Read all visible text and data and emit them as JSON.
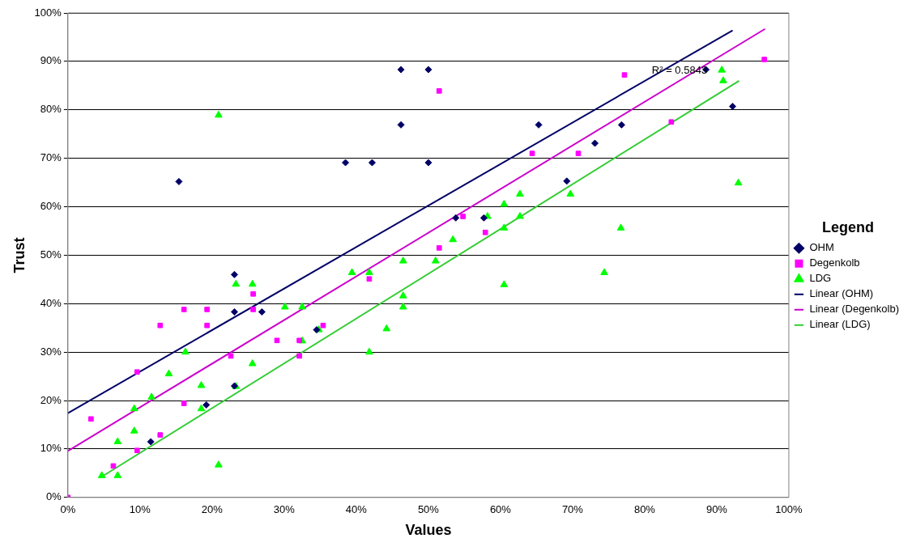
{
  "chart_data": {
    "type": "scatter",
    "xlabel": "Values",
    "ylabel": "Trust",
    "legend_title": "Legend",
    "legend": "right",
    "grid": "y",
    "xlim": [
      0,
      100
    ],
    "ylim": [
      0,
      100
    ],
    "xticks": [
      {
        "value": 0,
        "label": "0%"
      },
      {
        "value": 10,
        "label": "10%"
      },
      {
        "value": 20,
        "label": "20%"
      },
      {
        "value": 30,
        "label": "30%"
      },
      {
        "value": 40,
        "label": "40%"
      },
      {
        "value": 50,
        "label": "50%"
      },
      {
        "value": 60,
        "label": "60%"
      },
      {
        "value": 70,
        "label": "70%"
      },
      {
        "value": 80,
        "label": "80%"
      },
      {
        "value": 90,
        "label": "90%"
      },
      {
        "value": 100,
        "label": "100%"
      }
    ],
    "yticks": [
      {
        "value": 0,
        "label": "0%"
      },
      {
        "value": 10,
        "label": "10%"
      },
      {
        "value": 20,
        "label": "20%"
      },
      {
        "value": 30,
        "label": "30%"
      },
      {
        "value": 40,
        "label": "40%"
      },
      {
        "value": 50,
        "label": "50%"
      },
      {
        "value": 60,
        "label": "60%"
      },
      {
        "value": 70,
        "label": "70%"
      },
      {
        "value": 80,
        "label": "80%"
      },
      {
        "value": 90,
        "label": "90%"
      },
      {
        "value": 100,
        "label": "100%"
      }
    ],
    "annotations": [
      "R² = 0.5843"
    ],
    "series": [
      {
        "name": "OHM",
        "type": "scatter",
        "marker": "diamond",
        "color": "#000066",
        "x": [
          46.2,
          50,
          46.2,
          38.5,
          42.2,
          50,
          15.4,
          88.5,
          92.2,
          65.3,
          76.8,
          73.1,
          69.2,
          53.8,
          57.7,
          23.1,
          23.1,
          26.9,
          34.5,
          11.5,
          19.2,
          23.1
        ],
        "values": [
          88.3,
          88.3,
          76.9,
          69.1,
          69.1,
          69.1,
          65.2,
          88.3,
          80.7,
          76.9,
          76.9,
          73.1,
          65.3,
          57.7,
          57.7,
          46.0,
          38.3,
          38.3,
          34.6,
          11.5,
          19.1,
          23.0
        ]
      },
      {
        "name": "Degenkolb",
        "type": "scatter",
        "marker": "square",
        "color": "#ff00ff",
        "x": [
          51.5,
          77.2,
          96.6,
          83.7,
          64.4,
          70.8,
          54.8,
          57.9,
          51.5,
          25.7,
          16.1,
          19.3,
          25.7,
          12.8,
          19.3,
          9.6,
          3.2,
          12.8,
          9.6,
          6.3,
          0,
          16.1,
          22.6,
          29.0,
          32.1,
          32.1,
          35.4,
          41.8
        ],
        "values": [
          83.9,
          87.2,
          90.4,
          77.5,
          71.0,
          71.0,
          58.0,
          54.7,
          51.5,
          42.0,
          38.8,
          38.8,
          38.8,
          35.5,
          35.5,
          25.9,
          16.2,
          12.9,
          9.7,
          6.5,
          0,
          19.4,
          29.2,
          32.4,
          32.4,
          29.2,
          35.5,
          45.1
        ]
      },
      {
        "name": "LDG",
        "type": "scatter",
        "marker": "triangle",
        "color": "#00ff00",
        "x": [
          20.9,
          90.7,
          90.9,
          62.7,
          69.7,
          60.5,
          58.2,
          62.7,
          60.5,
          76.7,
          53.4,
          93.0,
          51.0,
          60.5,
          74.4,
          23.3,
          25.6,
          16.3,
          14.0,
          11.6,
          9.2,
          9.2,
          6.9,
          4.7,
          6.9,
          20.9,
          18.5,
          18.5,
          23.3,
          25.6,
          30.1,
          32.5,
          32.5,
          34.8,
          39.4,
          41.8,
          41.8,
          46.5,
          46.5,
          46.5,
          44.2
        ],
        "values": [
          78.9,
          88.2,
          86.0,
          62.6,
          62.6,
          60.5,
          58.0,
          58.0,
          55.6,
          55.6,
          53.2,
          64.9,
          48.8,
          43.9,
          46.4,
          44.0,
          44.0,
          30.0,
          25.5,
          20.7,
          18.3,
          13.7,
          11.5,
          4.5,
          4.5,
          6.7,
          18.3,
          23.1,
          22.9,
          27.6,
          39.3,
          39.3,
          32.3,
          34.6,
          46.4,
          46.4,
          30.0,
          48.8,
          41.6,
          39.3,
          34.8
        ]
      },
      {
        "name": "Linear (OHM)",
        "type": "line",
        "marker": "none",
        "color": "#000066",
        "x": [
          0,
          92.2
        ],
        "values": [
          17.4,
          96.4
        ]
      },
      {
        "name": "Linear (Degenkolb)",
        "type": "line",
        "marker": "none",
        "color": "#cc00cc",
        "x": [
          0,
          96.7
        ],
        "values": [
          9.6,
          96.7
        ]
      },
      {
        "name": "Linear (LDG)",
        "type": "line",
        "marker": "none",
        "color": "#33cc33",
        "x": [
          4.5,
          93.1
        ],
        "values": [
          4.1,
          86.0
        ]
      }
    ]
  }
}
